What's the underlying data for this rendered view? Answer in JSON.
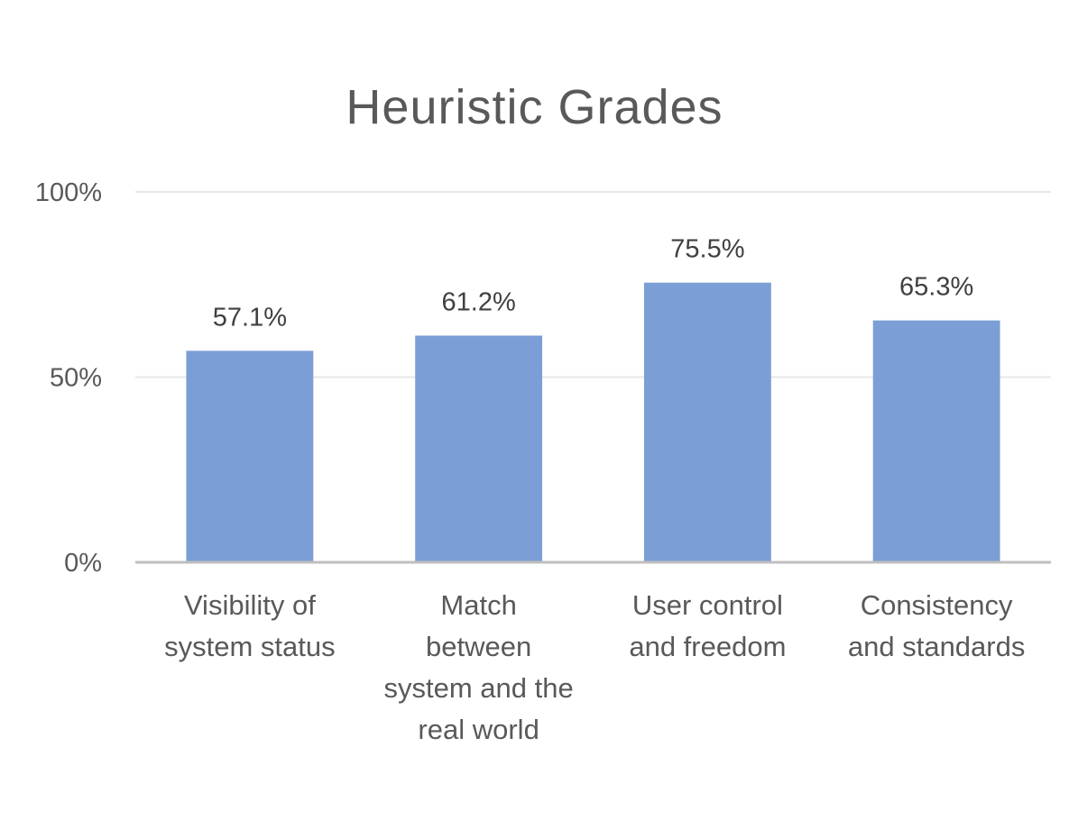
{
  "chart_data": {
    "type": "bar",
    "title": "Heuristic Grades",
    "xlabel": "",
    "ylabel": "",
    "categories": [
      [
        "Visibility of",
        "system status"
      ],
      [
        "Match",
        "between",
        "system and the",
        "real world"
      ],
      [
        "User control",
        "and freedom"
      ],
      [
        "Consistency",
        "and standards"
      ]
    ],
    "values": [
      57.1,
      61.2,
      75.5,
      65.3
    ],
    "data_labels": [
      "57.1%",
      "61.2%",
      "75.5%",
      "65.3%"
    ],
    "ylim": [
      0,
      100
    ],
    "yticks": [
      0,
      50,
      100
    ],
    "ytick_labels": [
      "0%",
      "50%",
      "100%"
    ],
    "grid": true,
    "legend": "none",
    "colors": {
      "bar": "#7b9ed6",
      "text": "#595959",
      "gridline": "#e7e7e7",
      "axis": "#bfbfbf"
    }
  }
}
